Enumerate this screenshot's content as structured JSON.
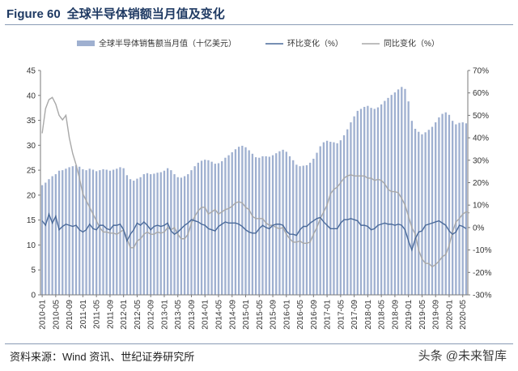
{
  "title": {
    "figure_number": "Figure 60",
    "text": "全球半导体销额当月值及变化"
  },
  "source": "资料来源：Wind 资讯、世纪证券研究所",
  "watermark": {
    "icon": "@",
    "text": "头条 @未来智库"
  },
  "colors": {
    "bar": "#9fb0d0",
    "mom": "#4a6a9a",
    "yoy": "#a8a8a8",
    "axis": "#7a7a7a",
    "title": "#1f3a63"
  },
  "chart_data": {
    "type": "bar+line",
    "legend": [
      "全球半导体销售额当月值（十亿美元）",
      "环比变化（%）",
      "同比变化（%）"
    ],
    "legend_position": "top",
    "x_start": "2010-01",
    "x_ticks": [
      "2010-01",
      "2010-05",
      "2010-09",
      "2011-01",
      "2011-05",
      "2011-09",
      "2012-01",
      "2012-05",
      "2012-09",
      "2013-01",
      "2013-05",
      "2013-09",
      "2014-01",
      "2014-05",
      "2014-09",
      "2015-01",
      "2015-05",
      "2015-09",
      "2016-01",
      "2016-05",
      "2016-09",
      "2017-01",
      "2017-05",
      "2017-09",
      "2018-01",
      "2018-05",
      "2018-09",
      "2019-01",
      "2019-05",
      "2019-09",
      "2020-01",
      "2020-05"
    ],
    "y_left": {
      "min": 0,
      "max": 45,
      "step": 5,
      "ticks": [
        "0",
        "5",
        "10",
        "15",
        "20",
        "25",
        "30",
        "35",
        "40",
        "45"
      ]
    },
    "y_right": {
      "min": -30,
      "max": 70,
      "step": 10,
      "ticks": [
        "-30%",
        "-20%",
        "-10%",
        "0%",
        "10%",
        "20%",
        "30%",
        "40%",
        "50%",
        "60%",
        "70%"
      ]
    },
    "series": [
      {
        "name": "全球半导体销售额当月值（十亿美元）",
        "type": "bar",
        "axis": "left",
        "values": [
          22.0,
          22.5,
          23.2,
          23.8,
          24.2,
          24.9,
          25.0,
          25.3,
          25.6,
          25.8,
          26.0,
          25.7,
          25.2,
          25.0,
          25.3,
          25.1,
          24.8,
          25.0,
          25.2,
          25.1,
          24.9,
          25.1,
          25.3,
          25.6,
          25.4,
          24.0,
          23.2,
          22.9,
          23.3,
          23.6,
          24.2,
          24.4,
          24.2,
          24.3,
          24.5,
          24.6,
          24.9,
          25.4,
          25.0,
          24.2,
          23.6,
          23.5,
          23.8,
          24.2,
          25.0,
          25.8,
          26.5,
          26.9,
          27.1,
          27.0,
          26.7,
          26.3,
          26.4,
          26.8,
          27.5,
          28.0,
          28.6,
          29.2,
          29.7,
          29.9,
          29.6,
          29.0,
          28.3,
          27.6,
          27.5,
          27.8,
          27.8,
          27.7,
          28.0,
          28.4,
          28.8,
          29.1,
          28.7,
          27.8,
          27.0,
          26.1,
          25.8,
          25.9,
          26.0,
          26.5,
          27.3,
          28.5,
          29.8,
          30.6,
          30.9,
          30.7,
          30.6,
          30.4,
          31.0,
          32.0,
          33.2,
          34.6,
          35.8,
          36.9,
          37.3,
          37.7,
          37.9,
          37.5,
          37.3,
          37.6,
          38.2,
          38.9,
          39.5,
          40.1,
          40.6,
          41.2,
          41.7,
          41.3,
          38.8,
          34.9,
          33.3,
          32.7,
          32.2,
          32.6,
          33.1,
          33.7,
          34.6,
          35.6,
          36.3,
          36.6,
          36.1,
          34.9,
          34.2,
          34.5,
          34.6,
          34.4
        ]
      },
      {
        "name": "环比变化（%）",
        "type": "line",
        "axis": "right",
        "values": [
          3,
          1,
          6,
          2,
          5,
          -1,
          0.5,
          1.5,
          1,
          0.5,
          1,
          -1,
          -2,
          -1,
          1.5,
          -0.5,
          -1,
          1,
          1,
          -0.5,
          -1,
          1,
          1,
          1.5,
          -1,
          -6,
          -3,
          -1,
          2,
          1,
          2.5,
          1,
          -1,
          0.5,
          1,
          0.5,
          1,
          2,
          -1.5,
          -3,
          -2,
          -0.5,
          1,
          2,
          3.5,
          3,
          2.5,
          1.5,
          1,
          -0.5,
          -1,
          -1.5,
          0.5,
          1.5,
          2.5,
          2,
          2,
          2,
          1.5,
          0.5,
          -1,
          -2,
          -2.5,
          -2.5,
          -0.5,
          1,
          0,
          -0.5,
          1,
          1.5,
          1.5,
          1,
          -1.5,
          -3,
          -3,
          -3.5,
          -1,
          0.5,
          0.5,
          2,
          3,
          4,
          4.5,
          2.5,
          1,
          -0.5,
          -0.5,
          -0.5,
          2,
          3.5,
          3.5,
          4,
          3.5,
          3,
          1,
          1,
          0.5,
          -1,
          -0.5,
          1,
          1.5,
          2,
          1.5,
          1.5,
          1,
          1.5,
          1,
          -1,
          -6,
          -10,
          -5,
          -2,
          -1.5,
          1,
          1.5,
          2,
          2.5,
          3,
          2,
          1,
          -1.5,
          -3,
          -2,
          1,
          0.5,
          -0.5
        ]
      },
      {
        "name": "同比变化（%）",
        "type": "line",
        "axis": "right",
        "values": [
          42,
          53,
          57,
          58,
          55,
          50,
          48,
          50,
          40,
          33,
          28,
          22,
          15,
          12,
          9,
          6,
          3,
          0,
          -2,
          -2,
          -2.5,
          -2.5,
          -3,
          -2,
          -1,
          -5,
          -9,
          -9,
          -6,
          -5,
          -3,
          -2,
          -3,
          -3,
          -2,
          -2.5,
          -2,
          0,
          -1,
          0,
          -3,
          -5,
          -5,
          -3,
          2,
          5,
          7.5,
          9,
          9,
          6,
          7,
          8,
          6,
          7,
          8,
          8.5,
          9.5,
          11,
          11.5,
          11,
          9,
          8,
          5,
          4,
          4,
          4,
          2,
          1,
          1,
          0,
          -0.5,
          0,
          -3,
          -5,
          -6.5,
          -6.5,
          -6,
          -7,
          -7,
          -6.5,
          -3,
          0,
          4,
          7,
          10,
          15,
          17,
          18,
          20,
          22,
          23,
          23.5,
          23,
          23,
          23,
          23,
          22,
          22,
          21,
          21.5,
          21,
          19.5,
          17,
          16,
          16,
          15.5,
          13,
          10,
          5,
          0,
          -3,
          -10,
          -14,
          -16,
          -16,
          -17.5,
          -16.5,
          -15,
          -13,
          -12,
          -8,
          -2,
          2.5,
          4,
          6,
          7,
          6.5
        ]
      }
    ]
  }
}
